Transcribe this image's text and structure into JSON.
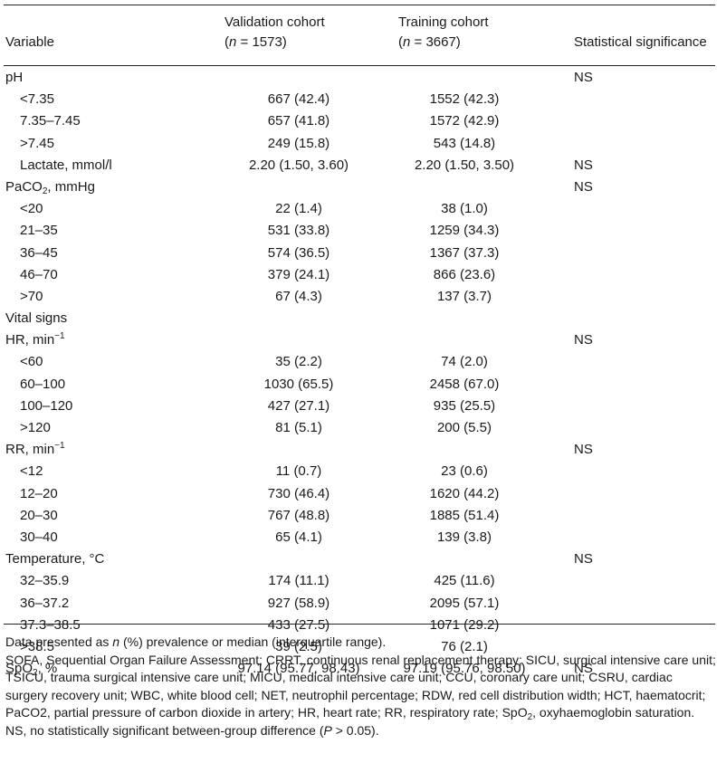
{
  "header": {
    "variable": "Variable",
    "validation_title": "Validation cohort",
    "validation_n": "(n = 1573)",
    "training_title": "Training cohort",
    "training_n": "(n = 3667)",
    "significance": "Statistical significance"
  },
  "rows": [
    {
      "variable": "pH",
      "indent": false,
      "validation": "",
      "training": "",
      "significance": "NS"
    },
    {
      "variable": "<7.35",
      "indent": true,
      "validation": "667 (42.4)",
      "training": "1552 (42.3)",
      "significance": ""
    },
    {
      "variable": "7.35–7.45",
      "indent": true,
      "validation": "657 (41.8)",
      "training": "1572 (42.9)",
      "significance": ""
    },
    {
      "variable": ">7.45",
      "indent": true,
      "validation": "249 (15.8)",
      "training": "543 (14.8)",
      "significance": ""
    },
    {
      "variable": "Lactate, mmol/l",
      "indent": true,
      "validation": "2.20 (1.50, 3.60)",
      "training": "2.20 (1.50, 3.50)",
      "significance": "NS"
    },
    {
      "variable": "PaCO2, mmHg",
      "indent": false,
      "validation": "",
      "training": "",
      "significance": "NS"
    },
    {
      "variable": "<20",
      "indent": true,
      "validation": "22 (1.4)",
      "training": "38 (1.0)",
      "significance": ""
    },
    {
      "variable": "21–35",
      "indent": true,
      "validation": "531 (33.8)",
      "training": "1259 (34.3)",
      "significance": ""
    },
    {
      "variable": "36–45",
      "indent": true,
      "validation": "574 (36.5)",
      "training": "1367 (37.3)",
      "significance": ""
    },
    {
      "variable": "46–70",
      "indent": true,
      "validation": "379 (24.1)",
      "training": "866 (23.6)",
      "significance": ""
    },
    {
      "variable": ">70",
      "indent": true,
      "validation": "67 (4.3)",
      "training": "137 (3.7)",
      "significance": ""
    },
    {
      "variable": "Vital signs",
      "indent": false,
      "validation": "",
      "training": "",
      "significance": ""
    },
    {
      "variable": "HR, min−1",
      "indent": false,
      "validation": "",
      "training": "",
      "significance": "NS"
    },
    {
      "variable": "<60",
      "indent": true,
      "validation": "35 (2.2)",
      "training": "74 (2.0)",
      "significance": ""
    },
    {
      "variable": "60–100",
      "indent": true,
      "validation": "1030 (65.5)",
      "training": "2458 (67.0)",
      "significance": ""
    },
    {
      "variable": "100–120",
      "indent": true,
      "validation": "427 (27.1)",
      "training": "935 (25.5)",
      "significance": ""
    },
    {
      "variable": ">120",
      "indent": true,
      "validation": "81 (5.1)",
      "training": "200 (5.5)",
      "significance": ""
    },
    {
      "variable": "RR, min−1",
      "indent": false,
      "validation": "",
      "training": "",
      "significance": "NS"
    },
    {
      "variable": "<12",
      "indent": true,
      "validation": "11 (0.7)",
      "training": "23 (0.6)",
      "significance": ""
    },
    {
      "variable": "12–20",
      "indent": true,
      "validation": "730 (46.4)",
      "training": "1620 (44.2)",
      "significance": ""
    },
    {
      "variable": "20–30",
      "indent": true,
      "validation": "767 (48.8)",
      "training": "1885 (51.4)",
      "significance": ""
    },
    {
      "variable": "30–40",
      "indent": true,
      "validation": "65 (4.1)",
      "training": "139 (3.8)",
      "significance": ""
    },
    {
      "variable": "Temperature, °C",
      "indent": false,
      "validation": "",
      "training": "",
      "significance": "NS"
    },
    {
      "variable": "32–35.9",
      "indent": true,
      "validation": "174 (11.1)",
      "training": "425 (11.6)",
      "significance": ""
    },
    {
      "variable": "36–37.2",
      "indent": true,
      "validation": "927 (58.9)",
      "training": "2095 (57.1)",
      "significance": ""
    },
    {
      "variable": "37.3–38.5",
      "indent": true,
      "validation": "433 (27.5)",
      "training": "1071 (29.2)",
      "significance": ""
    },
    {
      "variable": ">38.5",
      "indent": true,
      "validation": "39 (2.5)",
      "training": "76 (2.1)",
      "significance": ""
    },
    {
      "variable": "SpO2, %",
      "indent": false,
      "validation": "97.14 (95.77, 98.43)",
      "training": "97.19 (95.76, 98.50)",
      "significance": "NS"
    }
  ],
  "notes": [
    "Data presented as n (%) prevalence or median (interquartile range).",
    "SOFA, Sequential Organ Failure Assessment; CRRT, continuous renal replacement therapy; SICU, surgical intensive care unit; TSICU, trauma surgical intensive care unit; MICU, medical intensive care unit; CCU, coronary care unit; CSRU, cardiac surgery recovery unit; WBC, white blood cell; NET, neutrophil percentage; RDW, red cell distribution width; HCT, haematocrit; PaCO2, partial pressure of carbon dioxide in artery; HR, heart rate; RR, respiratory rate; SpO2, oxyhaemoglobin saturation.",
    "NS, no statistically significant between-group difference (P > 0.05)."
  ]
}
